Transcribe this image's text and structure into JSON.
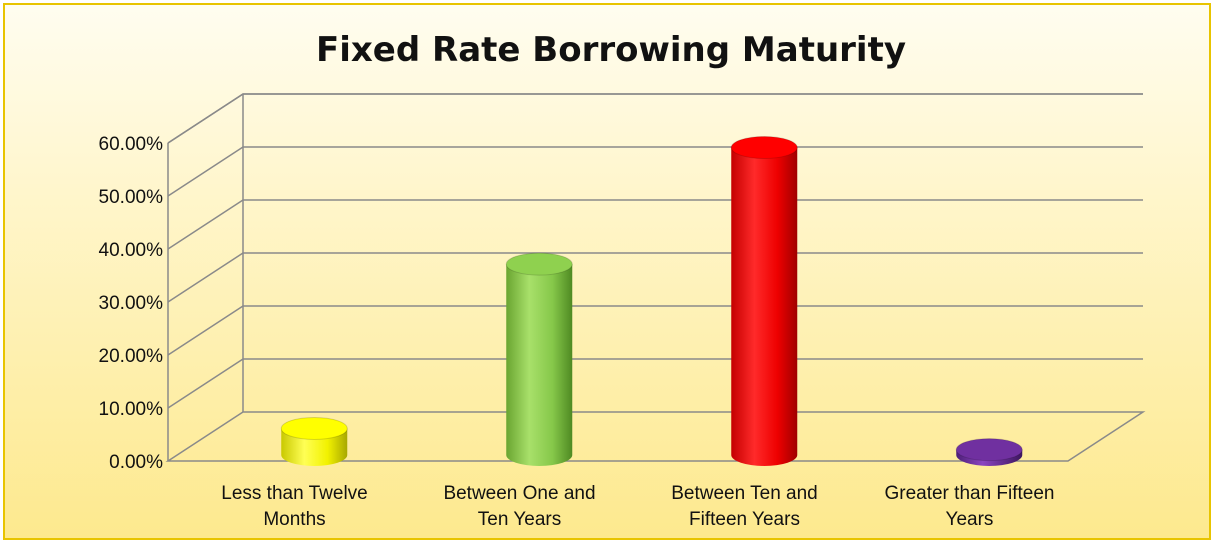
{
  "chart_data": {
    "type": "bar",
    "title": "Fixed Rate Borrowing Maturity",
    "xlabel": "",
    "ylabel": "",
    "ylim": [
      0,
      0.6
    ],
    "yticks": [
      "0.00%",
      "10.00%",
      "20.00%",
      "30.00%",
      "40.00%",
      "50.00%",
      "60.00%"
    ],
    "categories": [
      [
        "Less than Twelve",
        "Months"
      ],
      [
        "Between One and",
        "Ten Years"
      ],
      [
        "Between Ten and",
        "Fifteen Years"
      ],
      [
        "Greater than Fifteen",
        "Years"
      ]
    ],
    "values": [
      0.05,
      0.36,
      0.58,
      0.01
    ],
    "colors": [
      "#ffff00",
      "#8fd14f",
      "#ff0000",
      "#7030a0"
    ],
    "style": "3d-cylinder",
    "legend": "none",
    "grid": true
  }
}
